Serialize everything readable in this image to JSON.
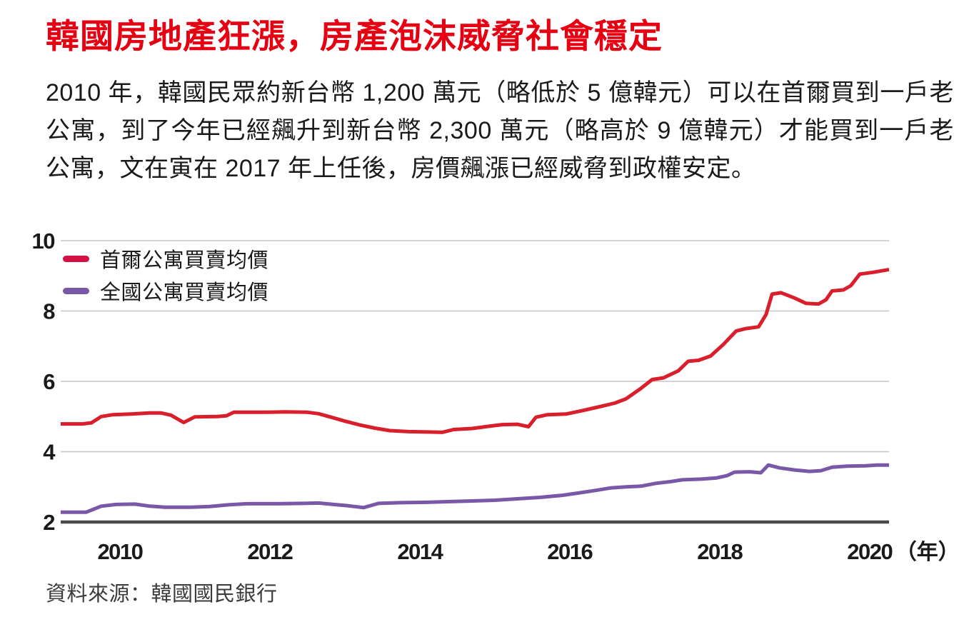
{
  "title": "韓國房地產狂漲，房產泡沫威脅社會穩定",
  "paragraph": "2010 年，韓國民眾約新台幣 1,200 萬元（略低於 5 億韓元）可以在首爾買到一戶老公寓，到了今年已經飆升到新台幣 2,300 萬元（略高於 9 億韓元）才能買到一戶老公寓，文在寅在 2017 年上任後，房價飆漲已經威脅到政權安定。",
  "source": "資料來源：韓國國民銀行",
  "colors": {
    "title_red": "#e60012",
    "seoul_line": "#da1f2c",
    "seoul_swatch": "#d31145",
    "national_line": "#7a58a8",
    "grid": "#c6c6c6",
    "axis_baseline": "#4a4a4a",
    "tick_text": "#1a1a1a"
  },
  "chart_data": {
    "type": "line",
    "title": "",
    "xlabel": "年",
    "ylabel": "",
    "x_unit_suffix": "（年）",
    "ylim": [
      2,
      10
    ],
    "xlim": [
      2009.21,
      2020.26
    ],
    "yticks": [
      2,
      4,
      6,
      8,
      10
    ],
    "xticks": [
      2010,
      2012,
      2014,
      2016,
      2018,
      2020
    ],
    "grid": "horizontal",
    "legend_position": "top-left",
    "series": [
      {
        "name": "首爾公寓買賣均價",
        "swatch_color": "#d31145",
        "line_color": "#da1f2c",
        "points": [
          [
            2009.21,
            4.79
          ],
          [
            2009.5,
            4.79
          ],
          [
            2009.62,
            4.82
          ],
          [
            2009.75,
            5.0
          ],
          [
            2009.9,
            5.05
          ],
          [
            2010.15,
            5.07
          ],
          [
            2010.4,
            5.1
          ],
          [
            2010.55,
            5.1
          ],
          [
            2010.68,
            5.04
          ],
          [
            2010.85,
            4.83
          ],
          [
            2011.0,
            4.99
          ],
          [
            2011.3,
            5.0
          ],
          [
            2011.42,
            5.02
          ],
          [
            2011.52,
            5.12
          ],
          [
            2011.9,
            5.12
          ],
          [
            2012.2,
            5.13
          ],
          [
            2012.5,
            5.12
          ],
          [
            2012.65,
            5.08
          ],
          [
            2012.8,
            4.99
          ],
          [
            2013.0,
            4.87
          ],
          [
            2013.2,
            4.76
          ],
          [
            2013.4,
            4.67
          ],
          [
            2013.6,
            4.6
          ],
          [
            2013.85,
            4.57
          ],
          [
            2014.1,
            4.56
          ],
          [
            2014.3,
            4.55
          ],
          [
            2014.45,
            4.63
          ],
          [
            2014.7,
            4.66
          ],
          [
            2014.95,
            4.73
          ],
          [
            2015.1,
            4.77
          ],
          [
            2015.3,
            4.78
          ],
          [
            2015.45,
            4.71
          ],
          [
            2015.55,
            4.98
          ],
          [
            2015.7,
            5.05
          ],
          [
            2015.95,
            5.07
          ],
          [
            2016.15,
            5.16
          ],
          [
            2016.4,
            5.28
          ],
          [
            2016.6,
            5.38
          ],
          [
            2016.75,
            5.5
          ],
          [
            2016.95,
            5.8
          ],
          [
            2017.1,
            6.05
          ],
          [
            2017.25,
            6.1
          ],
          [
            2017.45,
            6.3
          ],
          [
            2017.58,
            6.57
          ],
          [
            2017.72,
            6.6
          ],
          [
            2017.88,
            6.72
          ],
          [
            2018.05,
            7.05
          ],
          [
            2018.22,
            7.43
          ],
          [
            2018.35,
            7.5
          ],
          [
            2018.52,
            7.55
          ],
          [
            2018.62,
            7.9
          ],
          [
            2018.7,
            8.48
          ],
          [
            2018.82,
            8.52
          ],
          [
            2019.0,
            8.37
          ],
          [
            2019.15,
            8.22
          ],
          [
            2019.32,
            8.2
          ],
          [
            2019.42,
            8.32
          ],
          [
            2019.5,
            8.57
          ],
          [
            2019.65,
            8.6
          ],
          [
            2019.75,
            8.72
          ],
          [
            2019.87,
            9.05
          ],
          [
            2020.05,
            9.1
          ],
          [
            2020.26,
            9.18
          ]
        ]
      },
      {
        "name": "全國公寓買賣均價",
        "swatch_color": "#7a58a8",
        "line_color": "#7a58a8",
        "points": [
          [
            2009.21,
            2.28
          ],
          [
            2009.55,
            2.28
          ],
          [
            2009.75,
            2.45
          ],
          [
            2009.95,
            2.5
          ],
          [
            2010.2,
            2.51
          ],
          [
            2010.4,
            2.45
          ],
          [
            2010.6,
            2.42
          ],
          [
            2010.95,
            2.42
          ],
          [
            2011.2,
            2.44
          ],
          [
            2011.45,
            2.49
          ],
          [
            2011.7,
            2.52
          ],
          [
            2012.1,
            2.52
          ],
          [
            2012.45,
            2.53
          ],
          [
            2012.65,
            2.54
          ],
          [
            2012.85,
            2.5
          ],
          [
            2013.05,
            2.46
          ],
          [
            2013.25,
            2.41
          ],
          [
            2013.45,
            2.53
          ],
          [
            2013.75,
            2.55
          ],
          [
            2014.1,
            2.56
          ],
          [
            2014.4,
            2.58
          ],
          [
            2014.7,
            2.6
          ],
          [
            2015.0,
            2.62
          ],
          [
            2015.3,
            2.66
          ],
          [
            2015.6,
            2.7
          ],
          [
            2015.9,
            2.76
          ],
          [
            2016.1,
            2.82
          ],
          [
            2016.35,
            2.9
          ],
          [
            2016.55,
            2.97
          ],
          [
            2016.75,
            3.0
          ],
          [
            2016.95,
            3.02
          ],
          [
            2017.15,
            3.1
          ],
          [
            2017.35,
            3.15
          ],
          [
            2017.5,
            3.2
          ],
          [
            2017.75,
            3.22
          ],
          [
            2017.95,
            3.25
          ],
          [
            2018.1,
            3.32
          ],
          [
            2018.2,
            3.42
          ],
          [
            2018.4,
            3.43
          ],
          [
            2018.55,
            3.4
          ],
          [
            2018.65,
            3.62
          ],
          [
            2018.8,
            3.54
          ],
          [
            2019.0,
            3.48
          ],
          [
            2019.2,
            3.44
          ],
          [
            2019.35,
            3.46
          ],
          [
            2019.5,
            3.56
          ],
          [
            2019.7,
            3.59
          ],
          [
            2019.95,
            3.6
          ],
          [
            2020.1,
            3.62
          ],
          [
            2020.26,
            3.62
          ]
        ]
      }
    ]
  }
}
